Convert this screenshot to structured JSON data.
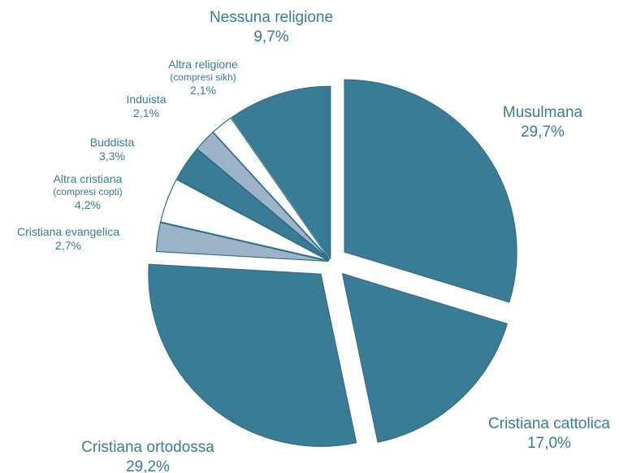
{
  "chart_data": {
    "type": "pie",
    "title": "",
    "slices": [
      {
        "label": "Musulmana",
        "value": 29.7,
        "value_label": "29,7%",
        "color": "#3a7b96"
      },
      {
        "label": "Cristiana cattolica",
        "value": 17.0,
        "value_label": "17,0%",
        "color": "#3a7b96"
      },
      {
        "label": "Cristiana ortodossa",
        "value": 29.2,
        "value_label": "29,2%",
        "color": "#3a7b96"
      },
      {
        "label": "Cristiana evangelica",
        "value": 2.7,
        "value_label": "2,7%",
        "color": "#9db3c8"
      },
      {
        "label": "Altra cristiana",
        "sublabel": "(compresi copti)",
        "value": 4.2,
        "value_label": "4,2%",
        "color": "#ffffff"
      },
      {
        "label": "Buddista",
        "value": 3.3,
        "value_label": "3,3%",
        "color": "#3a7b96"
      },
      {
        "label": "Induista",
        "value": 2.1,
        "value_label": "2,1%",
        "color": "#9db3c8"
      },
      {
        "label": "Altra religione",
        "sublabel": "(compresi sikh)",
        "value": 2.1,
        "value_label": "2,1%",
        "color": "#ffffff"
      },
      {
        "label": "Nessuna religione",
        "value": 9.7,
        "value_label": "9,7%",
        "color": "#3a7b96"
      }
    ],
    "label_color": "#3a7b96",
    "stroke_color": "#2f6e88"
  }
}
